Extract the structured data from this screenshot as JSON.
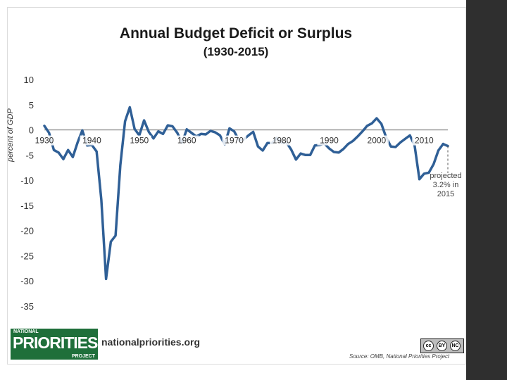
{
  "chart_data": {
    "type": "line",
    "title": "Annual Budget Deficit or Surplus",
    "subtitle": "(1930-2015)",
    "xlabel": "",
    "ylabel": "percent of GDP",
    "xlim": [
      1930,
      2015
    ],
    "ylim": [
      -35,
      10
    ],
    "x_ticks": [
      1930,
      1940,
      1950,
      1960,
      1970,
      1980,
      1990,
      2000,
      2010
    ],
    "y_ticks": [
      10,
      5,
      0,
      -5,
      -10,
      -15,
      -20,
      -25,
      -30,
      -35
    ],
    "series": [
      {
        "name": "Budget surplus or deficit",
        "color": "#2f5f96",
        "x": [
          1930,
          1931,
          1932,
          1933,
          1934,
          1935,
          1936,
          1937,
          1938,
          1939,
          1940,
          1941,
          1942,
          1943,
          1944,
          1945,
          1946,
          1947,
          1948,
          1949,
          1950,
          1951,
          1952,
          1953,
          1954,
          1955,
          1956,
          1957,
          1958,
          1959,
          1960,
          1961,
          1962,
          1963,
          1964,
          1965,
          1966,
          1967,
          1968,
          1969,
          1970,
          1971,
          1972,
          1973,
          1974,
          1975,
          1976,
          1977,
          1978,
          1979,
          1980,
          1981,
          1982,
          1983,
          1984,
          1985,
          1986,
          1987,
          1988,
          1989,
          1990,
          1991,
          1992,
          1993,
          1994,
          1995,
          1996,
          1997,
          1998,
          1999,
          2000,
          2001,
          2002,
          2003,
          2004,
          2005,
          2006,
          2007,
          2008,
          2009,
          2010,
          2011,
          2012,
          2013,
          2014,
          2015
        ],
        "values": [
          0.8,
          -0.6,
          -4.0,
          -4.5,
          -5.8,
          -4.0,
          -5.4,
          -2.5,
          -0.1,
          -3.1,
          -3.0,
          -4.3,
          -13.9,
          -29.6,
          -22.2,
          -21.0,
          -7.0,
          1.7,
          4.5,
          0.2,
          -1.1,
          1.9,
          -0.4,
          -1.7,
          -0.3,
          -0.8,
          0.9,
          0.7,
          -0.6,
          -2.6,
          0.1,
          -0.6,
          -1.3,
          -0.8,
          -0.9,
          -0.2,
          -0.5,
          -1.1,
          -2.9,
          0.3,
          -0.3,
          -2.1,
          -1.9,
          -1.1,
          -0.4,
          -3.3,
          -4.1,
          -2.6,
          -2.6,
          -1.6,
          -2.6,
          -2.5,
          -3.9,
          -5.9,
          -4.7,
          -5.0,
          -5.0,
          -3.1,
          -3.0,
          -2.7,
          -3.7,
          -4.4,
          -4.5,
          -3.8,
          -2.8,
          -2.2,
          -1.3,
          -0.3,
          0.8,
          1.3,
          2.3,
          1.2,
          -1.5,
          -3.3,
          -3.4,
          -2.5,
          -1.8,
          -1.1,
          -3.1,
          -9.8,
          -8.7,
          -8.5,
          -6.8,
          -4.1,
          -2.8,
          -3.2
        ],
        "projected_from": 2014
      }
    ],
    "annotations": [
      {
        "x": 2015,
        "y": -3.2,
        "text_lines": [
          "projected",
          "3.2% in",
          "2015"
        ]
      }
    ]
  },
  "branding": {
    "logo_line1": "NATIONAL",
    "logo_line2": "PRIORITIES",
    "logo_line3": "PROJECT",
    "website": "nationalpriorities.org",
    "license_icons": [
      "cc-icon",
      "by-icon",
      "nc-icon"
    ],
    "license_labels": [
      "cc",
      "BY",
      "NC"
    ],
    "source": "Source: OMB, National Priorities Project"
  }
}
